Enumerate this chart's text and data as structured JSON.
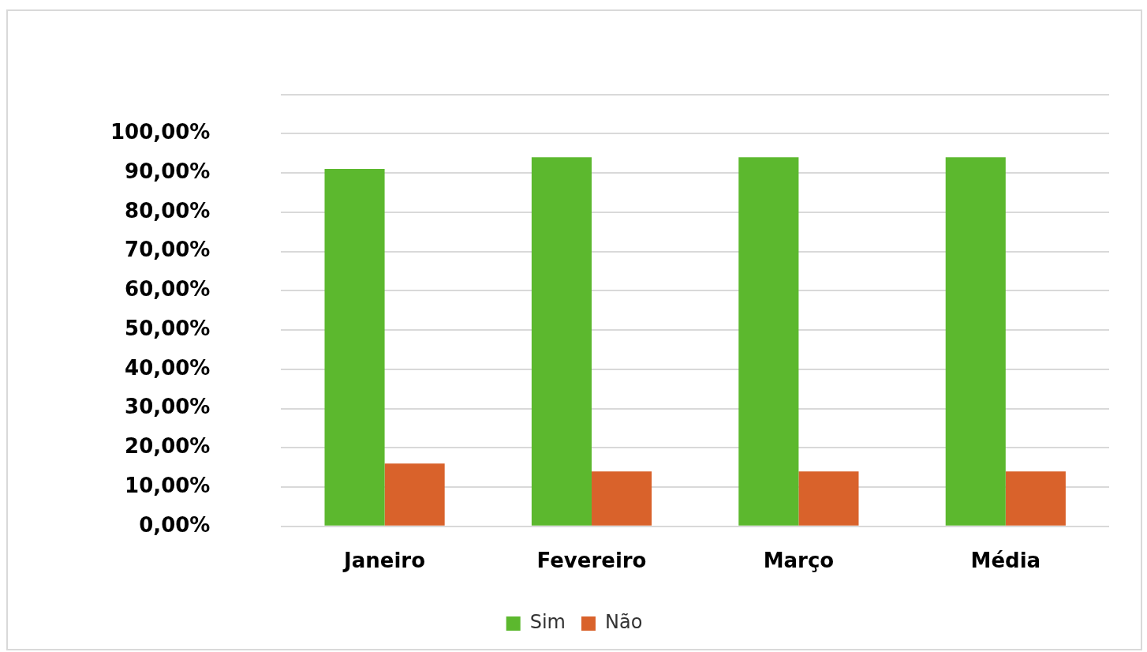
{
  "chart_data": {
    "type": "bar",
    "categories": [
      "Janeiro",
      "Fevereiro",
      "Março",
      "Média"
    ],
    "series": [
      {
        "name": "Sim",
        "color": "#5cb82e",
        "values": [
          91,
          94,
          94,
          94
        ]
      },
      {
        "name": "Não",
        "color": "#d9622b",
        "values": [
          16,
          14,
          14,
          14
        ]
      }
    ],
    "ylim": [
      0,
      110
    ],
    "yticks": [
      {
        "value": 0,
        "label": "0,00%"
      },
      {
        "value": 10,
        "label": "10,00%"
      },
      {
        "value": 20,
        "label": "20,00%"
      },
      {
        "value": 30,
        "label": "30,00%"
      },
      {
        "value": 40,
        "label": "40,00%"
      },
      {
        "value": 50,
        "label": "50,00%"
      },
      {
        "value": 60,
        "label": "60,00%"
      },
      {
        "value": 70,
        "label": "70,00%"
      },
      {
        "value": 80,
        "label": "80,00%"
      },
      {
        "value": 90,
        "label": "90,00%"
      },
      {
        "value": 100,
        "label": "100,00%"
      },
      {
        "value": 110,
        "label": null
      }
    ],
    "grid": "y",
    "legend": "bottom"
  }
}
